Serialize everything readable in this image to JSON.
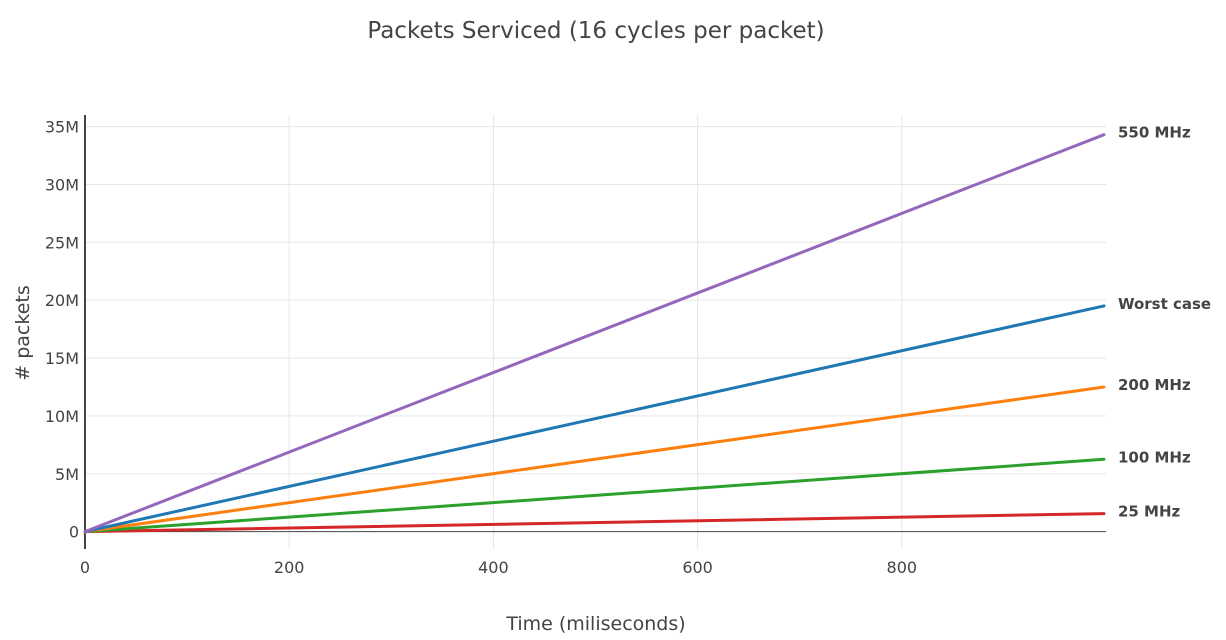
{
  "chart_data": {
    "type": "line",
    "title": "Packets Serviced (16 cycles per packet)",
    "xlabel": "Time (miliseconds)",
    "ylabel": "# packets",
    "xlim": [
      0,
      1000
    ],
    "ylim": [
      -1500000,
      36000000
    ],
    "x_ticks": [
      0,
      200,
      400,
      600,
      800
    ],
    "x_tick_labels": [
      "0",
      "200",
      "400",
      "600",
      "800"
    ],
    "y_ticks": [
      0,
      5000000,
      10000000,
      15000000,
      20000000,
      25000000,
      30000000,
      35000000
    ],
    "y_tick_labels": [
      "0",
      "5M",
      "10M",
      "15M",
      "20M",
      "25M",
      "30M",
      "35M"
    ],
    "grid": true,
    "legend": "labels at line ends",
    "series": [
      {
        "name": "550 MHz",
        "color": "#9467bd",
        "x": [
          0,
          998
        ],
        "y": [
          0,
          34300000
        ]
      },
      {
        "name": "Worst case",
        "color": "#1f77b4",
        "x": [
          0,
          998
        ],
        "y": [
          0,
          19500000
        ]
      },
      {
        "name": "200 MHz",
        "color": "#ff7f0e",
        "x": [
          0,
          998
        ],
        "y": [
          0,
          12500000
        ]
      },
      {
        "name": "100 MHz",
        "color": "#2ca02c",
        "x": [
          0,
          998
        ],
        "y": [
          0,
          6250000
        ]
      },
      {
        "name": "25 MHz",
        "color": "#d62728",
        "x": [
          0,
          998
        ],
        "y": [
          0,
          1560000
        ]
      }
    ]
  }
}
